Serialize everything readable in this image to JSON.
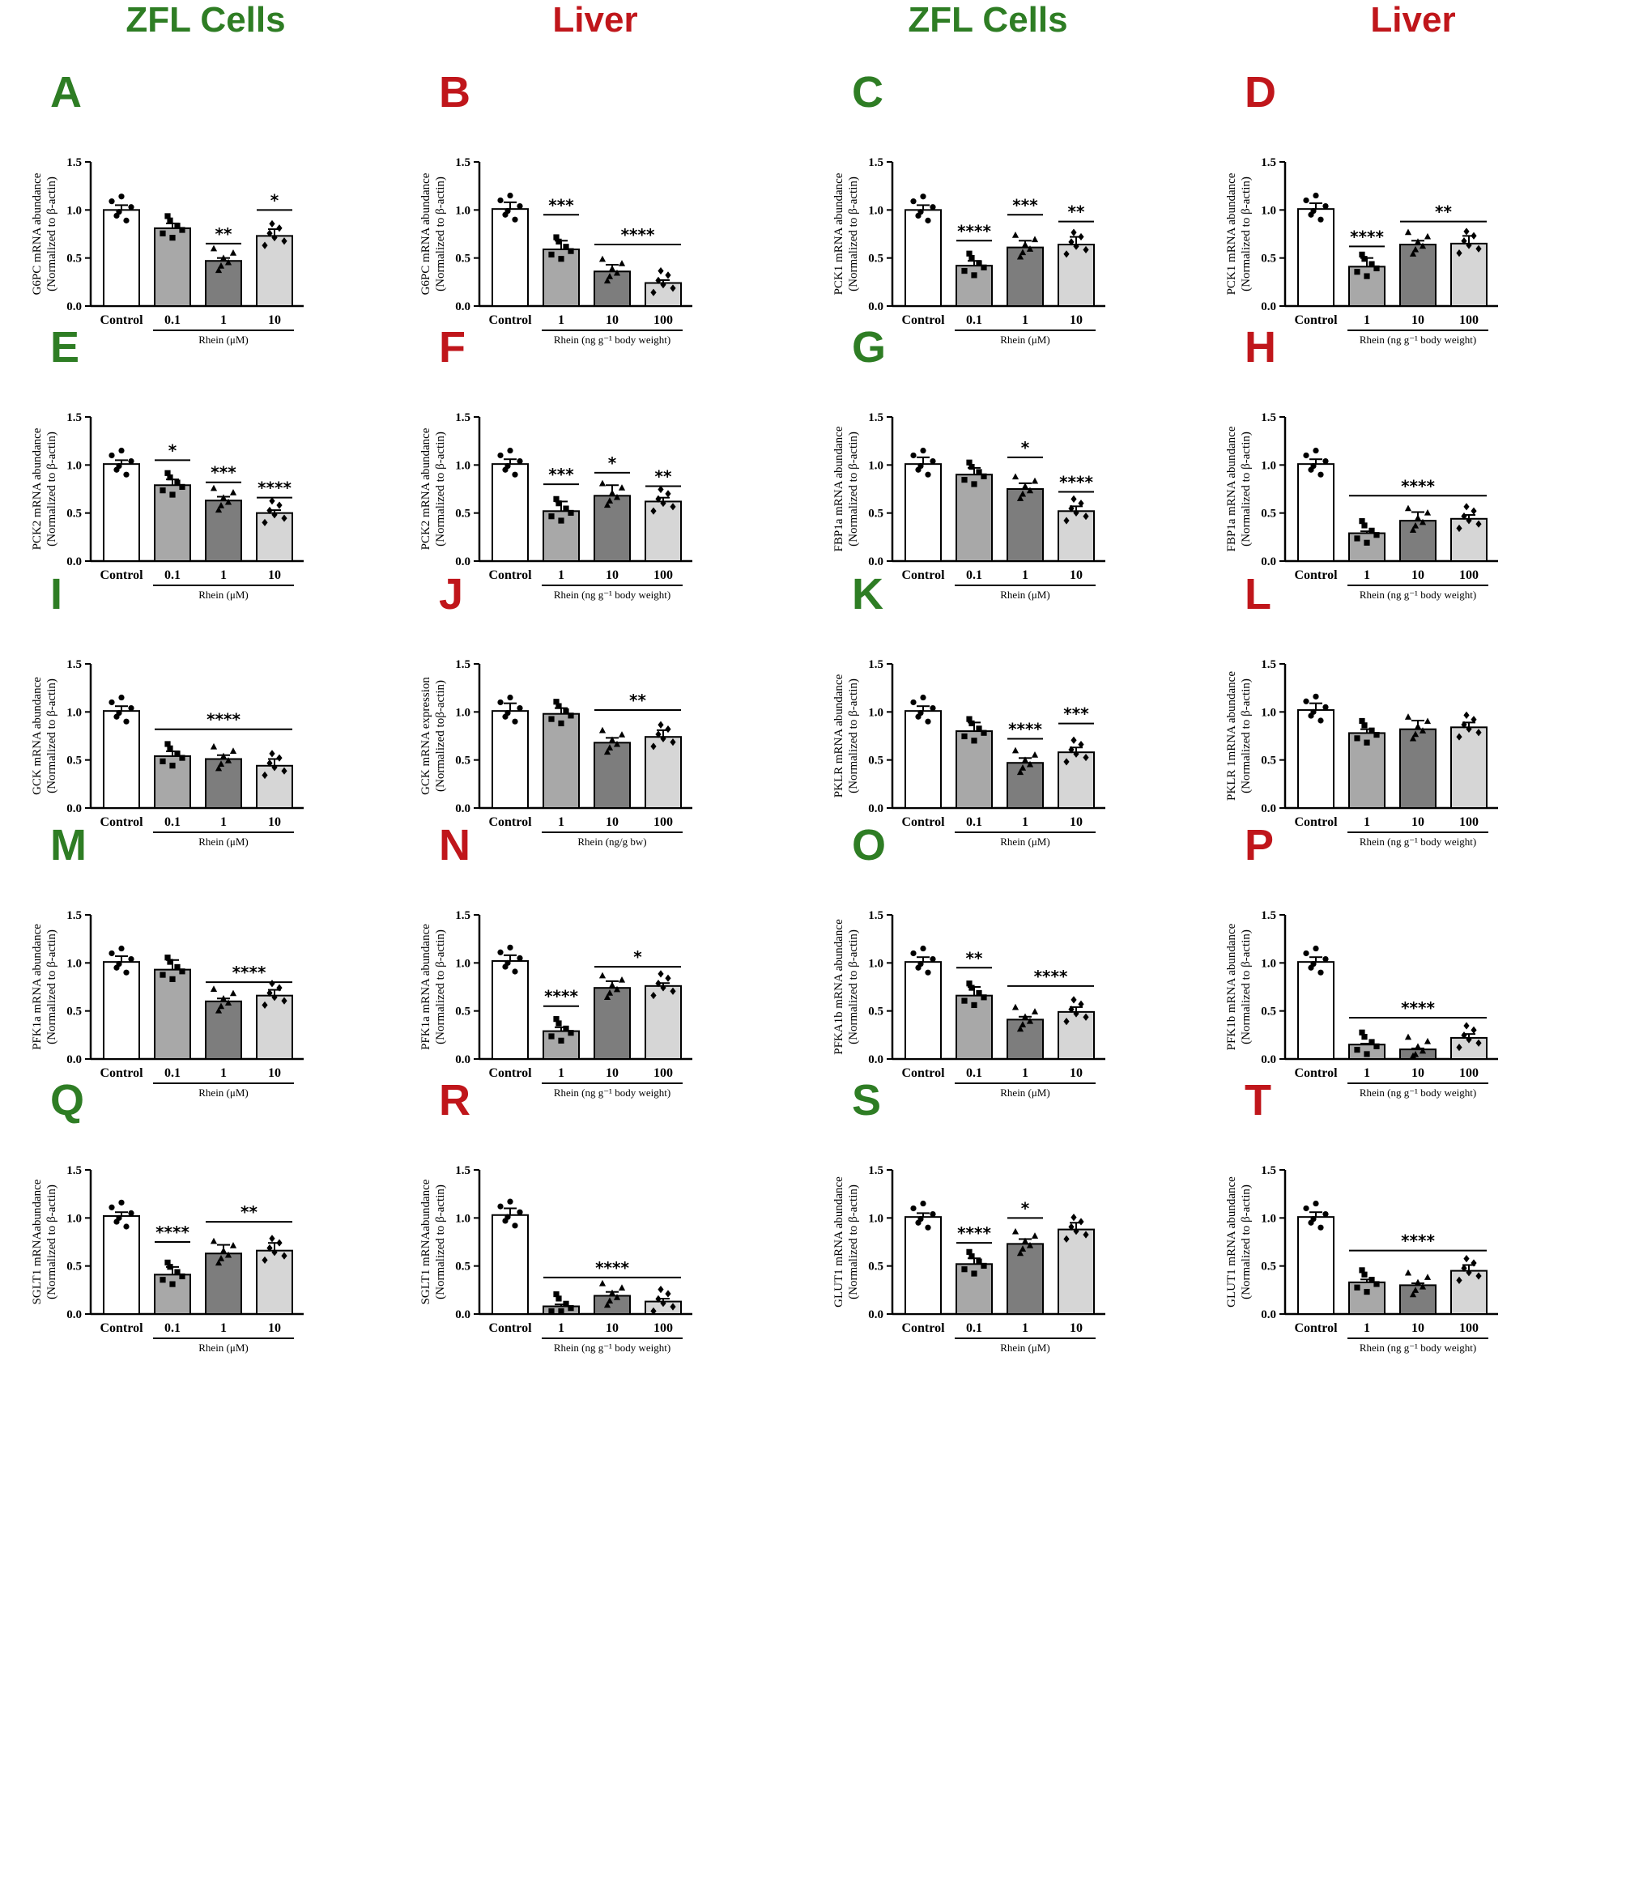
{
  "column_headers": [
    "ZFL Cells",
    "Liver",
    "ZFL Cells",
    "Liver"
  ],
  "colors": {
    "zfl": "#2e7d24",
    "liver": "#c0161b",
    "bars": [
      "#ffffff",
      "#a8a8a8",
      "#7d7d7d",
      "#d6d6d6"
    ]
  },
  "chart_data": [
    {
      "label": "A",
      "group": "zfl",
      "type": "bar",
      "ylabel": "G6PC mRNA abundance",
      "ylabel2": "(Normalized to β-actin)",
      "categories": [
        "Control",
        "0.1",
        "1",
        "10"
      ],
      "values": [
        1.0,
        0.81,
        0.47,
        0.73
      ],
      "errors": [
        0.05,
        0.05,
        0.03,
        0.07
      ],
      "ylim": [
        0,
        1.5
      ],
      "yticks": [
        "0.0",
        "0.5",
        "1.0",
        "1.5"
      ],
      "group_label": "Rhein (μM)",
      "sig": [
        {
          "text": "**",
          "from": 2,
          "to": 2,
          "y": 0.65
        },
        {
          "text": "*",
          "from": 3,
          "to": 3,
          "y": 1.0
        }
      ]
    },
    {
      "label": "B",
      "group": "liver",
      "type": "bar",
      "ylabel": "G6PC mRNA abundance",
      "ylabel2": "(Normalized to β-actin)",
      "categories": [
        "Control",
        "1",
        "10",
        "100"
      ],
      "values": [
        1.01,
        0.59,
        0.36,
        0.24
      ],
      "errors": [
        0.07,
        0.09,
        0.07,
        0.03
      ],
      "ylim": [
        0,
        1.5
      ],
      "yticks": [
        "0.0",
        "0.5",
        "1.0",
        "1.5"
      ],
      "group_label": "Rhein (ng g⁻¹ body weight)",
      "sig": [
        {
          "text": "***",
          "from": 1,
          "to": 1,
          "y": 0.95
        },
        {
          "text": "****",
          "from": 2,
          "to": 3,
          "y": 0.64
        }
      ]
    },
    {
      "label": "C",
      "group": "zfl",
      "type": "bar",
      "ylabel": "PCK1 mRNA abundance",
      "ylabel2": "(Normalized to β-actin)",
      "categories": [
        "Control",
        "0.1",
        "1",
        "10"
      ],
      "values": [
        1.0,
        0.42,
        0.61,
        0.64
      ],
      "errors": [
        0.05,
        0.05,
        0.07,
        0.08
      ],
      "ylim": [
        0,
        1.5
      ],
      "yticks": [
        "0.0",
        "0.5",
        "1.0",
        "1.5"
      ],
      "group_label": "Rhein (μM)",
      "sig": [
        {
          "text": "****",
          "from": 1,
          "to": 1,
          "y": 0.68
        },
        {
          "text": "***",
          "from": 2,
          "to": 2,
          "y": 0.95
        },
        {
          "text": "**",
          "from": 3,
          "to": 3,
          "y": 0.88
        }
      ]
    },
    {
      "label": "D",
      "group": "liver",
      "type": "bar",
      "ylabel": "PCK1 mRNA abundance",
      "ylabel2": "(Normalized to β-actin)",
      "categories": [
        "Control",
        "1",
        "10",
        "100"
      ],
      "values": [
        1.01,
        0.41,
        0.64,
        0.65
      ],
      "errors": [
        0.06,
        0.09,
        0.04,
        0.08
      ],
      "ylim": [
        0,
        1.5
      ],
      "yticks": [
        "0.0",
        "0.5",
        "1.0",
        "1.5"
      ],
      "group_label": "Rhein (ng g⁻¹ body weight)",
      "sig": [
        {
          "text": "****",
          "from": 1,
          "to": 1,
          "y": 0.62
        },
        {
          "text": "**",
          "from": 2,
          "to": 3,
          "y": 0.88
        }
      ]
    },
    {
      "label": "E",
      "group": "zfl",
      "type": "bar",
      "ylabel": "PCK2 mRNA abundance",
      "ylabel2": "(Normalized to β-actin)",
      "categories": [
        "Control",
        "0.1",
        "1",
        "10"
      ],
      "values": [
        1.01,
        0.79,
        0.63,
        0.5
      ],
      "errors": [
        0.04,
        0.06,
        0.04,
        0.03
      ],
      "ylim": [
        0,
        1.5
      ],
      "yticks": [
        "0.0",
        "0.5",
        "1.0",
        "1.5"
      ],
      "group_label": "Rhein (μM)",
      "sig": [
        {
          "text": "*",
          "from": 1,
          "to": 1,
          "y": 1.05
        },
        {
          "text": "***",
          "from": 2,
          "to": 2,
          "y": 0.82
        },
        {
          "text": "****",
          "from": 3,
          "to": 3,
          "y": 0.66
        }
      ]
    },
    {
      "label": "F",
      "group": "liver",
      "type": "bar",
      "ylabel": "PCK2 mRNA abundance",
      "ylabel2": "(Normalized to β-actin)",
      "categories": [
        "Control",
        "1",
        "10",
        "100"
      ],
      "values": [
        1.01,
        0.52,
        0.68,
        0.62
      ],
      "errors": [
        0.05,
        0.1,
        0.11,
        0.04
      ],
      "ylim": [
        0,
        1.5
      ],
      "yticks": [
        "0.0",
        "0.5",
        "1.0",
        "1.5"
      ],
      "group_label": "Rhein (ng g⁻¹ body weight)",
      "sig": [
        {
          "text": "***",
          "from": 1,
          "to": 1,
          "y": 0.8
        },
        {
          "text": "*",
          "from": 2,
          "to": 2,
          "y": 0.92
        },
        {
          "text": "**",
          "from": 3,
          "to": 3,
          "y": 0.78
        }
      ]
    },
    {
      "label": "G",
      "group": "zfl",
      "type": "bar",
      "ylabel": "FBP1a mRNA abundance",
      "ylabel2": "(Normalized to β-actin)",
      "categories": [
        "Control",
        "0.1",
        "1",
        "10"
      ],
      "values": [
        1.01,
        0.9,
        0.75,
        0.52
      ],
      "errors": [
        0.07,
        0.07,
        0.06,
        0.05
      ],
      "ylim": [
        0,
        1.5
      ],
      "yticks": [
        "0.0",
        "0.5",
        "1.0",
        "1.5"
      ],
      "group_label": "Rhein (μM)",
      "sig": [
        {
          "text": "*",
          "from": 2,
          "to": 2,
          "y": 1.08
        },
        {
          "text": "****",
          "from": 3,
          "to": 3,
          "y": 0.72
        }
      ]
    },
    {
      "label": "H",
      "group": "liver",
      "type": "bar",
      "ylabel": "FBP1a mRNA abundance",
      "ylabel2": "(Normalized to β-actin)",
      "categories": [
        "Control",
        "1",
        "10",
        "100"
      ],
      "values": [
        1.01,
        0.29,
        0.42,
        0.44
      ],
      "errors": [
        0.05,
        0.02,
        0.09,
        0.04
      ],
      "ylim": [
        0,
        1.5
      ],
      "yticks": [
        "0.0",
        "0.5",
        "1.0",
        "1.5"
      ],
      "group_label": "Rhein (ng g⁻¹ body weight)",
      "sig": [
        {
          "text": "****",
          "from": 1,
          "to": 3,
          "y": 0.68
        }
      ]
    },
    {
      "label": "I",
      "group": "zfl",
      "type": "bar",
      "ylabel": "GCK mRNA abundance",
      "ylabel2": "(Normalized to β-actin)",
      "categories": [
        "Control",
        "0.1",
        "1",
        "10"
      ],
      "values": [
        1.01,
        0.54,
        0.51,
        0.44
      ],
      "errors": [
        0.05,
        0.05,
        0.04,
        0.07
      ],
      "ylim": [
        0,
        1.5
      ],
      "yticks": [
        "0.0",
        "0.5",
        "1.0",
        "1.5"
      ],
      "group_label": "Rhein (μM)",
      "sig": [
        {
          "text": "****",
          "from": 1,
          "to": 3,
          "y": 0.82
        }
      ]
    },
    {
      "label": "J",
      "group": "liver",
      "type": "bar",
      "ylabel": "GCK mRNA expression",
      "ylabel2": "(Normalized toβ-actin)",
      "categories": [
        "Control",
        "1",
        "10",
        "100"
      ],
      "values": [
        1.01,
        0.98,
        0.68,
        0.74
      ],
      "errors": [
        0.08,
        0.06,
        0.05,
        0.07
      ],
      "ylim": [
        0,
        1.5
      ],
      "yticks": [
        "0.0",
        "0.5",
        "1.0",
        "1.5"
      ],
      "group_label": "Rhein (ng/g bw)",
      "sig": [
        {
          "text": "**",
          "from": 2,
          "to": 3,
          "y": 1.02
        }
      ]
    },
    {
      "label": "K",
      "group": "zfl",
      "type": "bar",
      "ylabel": "PKLR mRNA abundance",
      "ylabel2": "(Normalized to β-actin)",
      "categories": [
        "Control",
        "0.1",
        "1",
        "10"
      ],
      "values": [
        1.01,
        0.8,
        0.47,
        0.58
      ],
      "errors": [
        0.05,
        0.09,
        0.05,
        0.05
      ],
      "ylim": [
        0,
        1.5
      ],
      "yticks": [
        "0.0",
        "0.5",
        "1.0",
        "1.5"
      ],
      "group_label": "Rhein (μM)",
      "sig": [
        {
          "text": "****",
          "from": 2,
          "to": 2,
          "y": 0.72
        },
        {
          "text": "***",
          "from": 3,
          "to": 3,
          "y": 0.88
        }
      ]
    },
    {
      "label": "L",
      "group": "liver",
      "type": "bar",
      "ylabel": "PKLR 1mRNA abundance",
      "ylabel2": "(Normalized to β-actin)",
      "categories": [
        "Control",
        "1",
        "10",
        "100"
      ],
      "values": [
        1.02,
        0.78,
        0.82,
        0.84
      ],
      "errors": [
        0.07,
        0.04,
        0.09,
        0.05
      ],
      "ylim": [
        0,
        1.5
      ],
      "yticks": [
        "0.0",
        "0.5",
        "1.0",
        "1.5"
      ],
      "group_label": "Rhein (ng g⁻¹ body weight)",
      "sig": []
    },
    {
      "label": "M",
      "group": "zfl",
      "type": "bar",
      "ylabel": "PFK1a mRNA abundance",
      "ylabel2": "(Normalized to β-actin)",
      "categories": [
        "Control",
        "0.1",
        "1",
        "10"
      ],
      "values": [
        1.01,
        0.93,
        0.6,
        0.66
      ],
      "errors": [
        0.06,
        0.1,
        0.03,
        0.06
      ],
      "ylim": [
        0,
        1.5
      ],
      "yticks": [
        "0.0",
        "0.5",
        "1.0",
        "1.5"
      ],
      "group_label": "Rhein (μM)",
      "sig": [
        {
          "text": "****",
          "from": 2,
          "to": 3,
          "y": 0.8
        }
      ]
    },
    {
      "label": "N",
      "group": "liver",
      "type": "bar",
      "ylabel": "PFK1a mRNA abundance",
      "ylabel2": "(Normalized to β-actin)",
      "categories": [
        "Control",
        "1",
        "10",
        "100"
      ],
      "values": [
        1.02,
        0.29,
        0.74,
        0.76
      ],
      "errors": [
        0.06,
        0.04,
        0.07,
        0.03
      ],
      "ylim": [
        0,
        1.5
      ],
      "yticks": [
        "0.0",
        "0.5",
        "1.0",
        "1.5"
      ],
      "group_label": "Rhein (ng g⁻¹ body weight)",
      "sig": [
        {
          "text": "****",
          "from": 1,
          "to": 1,
          "y": 0.55
        },
        {
          "text": "*",
          "from": 2,
          "to": 3,
          "y": 0.96
        }
      ]
    },
    {
      "label": "O",
      "group": "zfl",
      "type": "bar",
      "ylabel": "PFKA1b mRNA abundance",
      "ylabel2": "(Normalized to β-actin)",
      "categories": [
        "Control",
        "0.1",
        "1",
        "10"
      ],
      "values": [
        1.01,
        0.66,
        0.41,
        0.49
      ],
      "errors": [
        0.05,
        0.09,
        0.03,
        0.05
      ],
      "ylim": [
        0,
        1.5
      ],
      "yticks": [
        "0.0",
        "0.5",
        "1.0",
        "1.5"
      ],
      "group_label": "Rhein (μM)",
      "sig": [
        {
          "text": "**",
          "from": 1,
          "to": 1,
          "y": 0.95
        },
        {
          "text": "****",
          "from": 2,
          "to": 3,
          "y": 0.76
        }
      ]
    },
    {
      "label": "P",
      "group": "liver",
      "type": "bar",
      "ylabel": "PFK1b mRNA abundance",
      "ylabel2": "(Normalized to β-actin)",
      "categories": [
        "Control",
        "1",
        "10",
        "100"
      ],
      "values": [
        1.01,
        0.15,
        0.1,
        0.22
      ],
      "errors": [
        0.05,
        0.01,
        0.01,
        0.04
      ],
      "ylim": [
        0,
        1.5
      ],
      "yticks": [
        "0.0",
        "0.5",
        "1.0",
        "1.5"
      ],
      "group_label": "Rhein (ng g⁻¹ body weight)",
      "sig": [
        {
          "text": "****",
          "from": 1,
          "to": 3,
          "y": 0.43
        }
      ]
    },
    {
      "label": "Q",
      "group": "zfl",
      "type": "bar",
      "ylabel": "SGLT1 mRNAabundance",
      "ylabel2": "(Normalized to β-actin)",
      "categories": [
        "Control",
        "0.1",
        "1",
        "10"
      ],
      "values": [
        1.02,
        0.41,
        0.63,
        0.66
      ],
      "errors": [
        0.04,
        0.08,
        0.09,
        0.08
      ],
      "ylim": [
        0,
        1.5
      ],
      "yticks": [
        "0.0",
        "0.5",
        "1.0",
        "1.5"
      ],
      "group_label": "Rhein (μM)",
      "sig": [
        {
          "text": "****",
          "from": 1,
          "to": 1,
          "y": 0.75
        },
        {
          "text": "**",
          "from": 2,
          "to": 3,
          "y": 0.96
        }
      ]
    },
    {
      "label": "R",
      "group": "liver",
      "type": "bar",
      "ylabel": "SGLT1 mRNAabundance",
      "ylabel2": "(Normalized to β-actin)",
      "categories": [
        "Control",
        "1",
        "10",
        "100"
      ],
      "values": [
        1.03,
        0.08,
        0.19,
        0.13
      ],
      "errors": [
        0.07,
        0.02,
        0.04,
        0.03
      ],
      "ylim": [
        0,
        1.5
      ],
      "yticks": [
        "0.0",
        "0.5",
        "1.0",
        "1.5"
      ],
      "group_label": "Rhein (ng g⁻¹ body weight)",
      "sig": [
        {
          "text": "****",
          "from": 1,
          "to": 3,
          "y": 0.38
        }
      ]
    },
    {
      "label": "S",
      "group": "zfl",
      "type": "bar",
      "ylabel": "GLUT1 mRNA abundance",
      "ylabel2": "(Normalized to β-actin)",
      "categories": [
        "Control",
        "0.1",
        "1",
        "10"
      ],
      "values": [
        1.01,
        0.52,
        0.73,
        0.88
      ],
      "errors": [
        0.04,
        0.06,
        0.05,
        0.07
      ],
      "ylim": [
        0,
        1.5
      ],
      "yticks": [
        "0.0",
        "0.5",
        "1.0",
        "1.5"
      ],
      "group_label": "Rhein (μM)",
      "sig": [
        {
          "text": "****",
          "from": 1,
          "to": 1,
          "y": 0.74
        },
        {
          "text": "*",
          "from": 2,
          "to": 2,
          "y": 1.0
        }
      ]
    },
    {
      "label": "T",
      "group": "liver",
      "type": "bar",
      "ylabel": "GLUT1 mRNA abundance",
      "ylabel2": "(Normalized to β-actin)",
      "categories": [
        "Control",
        "1",
        "10",
        "100"
      ],
      "values": [
        1.01,
        0.33,
        0.3,
        0.45
      ],
      "errors": [
        0.05,
        0.03,
        0.02,
        0.06
      ],
      "ylim": [
        0,
        1.5
      ],
      "yticks": [
        "0.0",
        "0.5",
        "1.0",
        "1.5"
      ],
      "group_label": "Rhein (ng g⁻¹ body weight)",
      "sig": [
        {
          "text": "****",
          "from": 1,
          "to": 3,
          "y": 0.66
        }
      ]
    }
  ]
}
